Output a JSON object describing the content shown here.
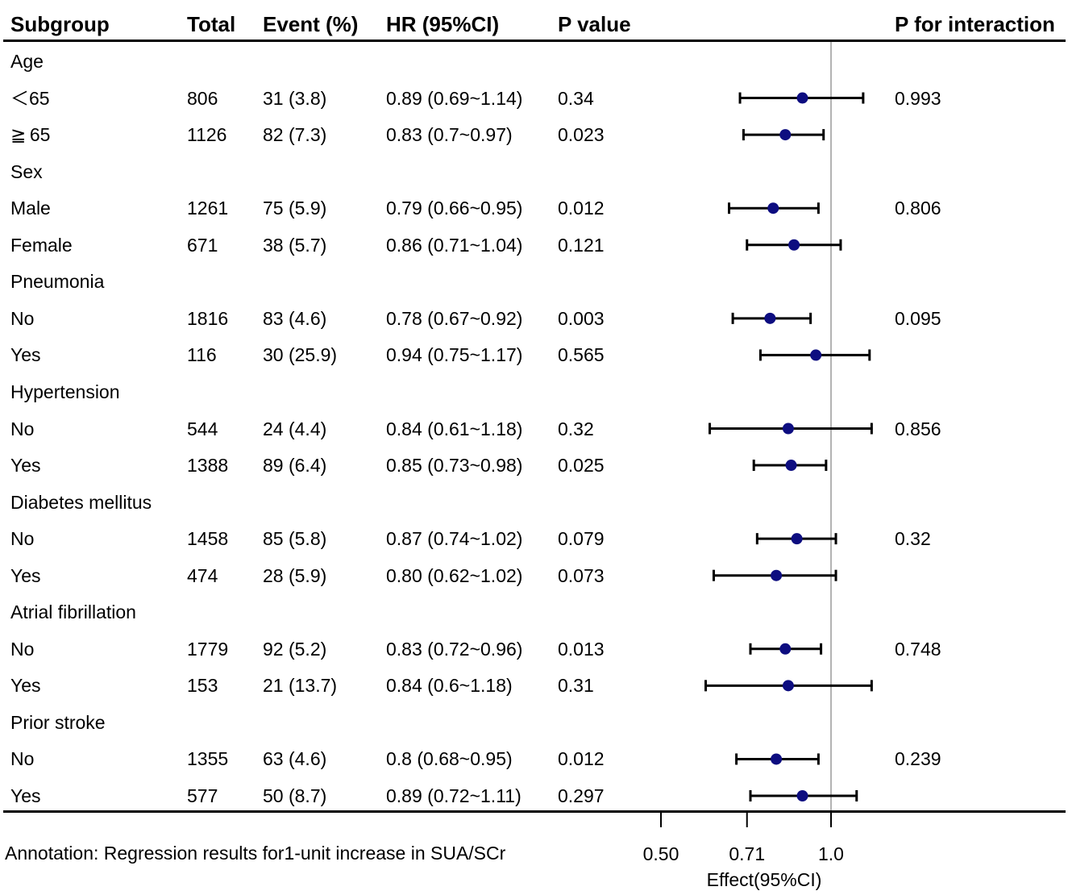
{
  "chart_data": {
    "type": "forest",
    "headers": {
      "subgroup": "Subgroup",
      "total": "Total",
      "event": "Event (%)",
      "hr": "HR (95%CI)",
      "p": "P value",
      "p_interaction": "P for interaction"
    },
    "rows": [
      {
        "kind": "group",
        "label": "Age"
      },
      {
        "kind": "item",
        "label": "＜65",
        "total": "806",
        "event": "31 (3.8)",
        "hr_text": "0.89 (0.69~1.14)",
        "p": "0.34",
        "p_interaction": "0.993",
        "hr": 0.89,
        "lower": 0.69,
        "upper": 1.14
      },
      {
        "kind": "item",
        "label": "≧ 65",
        "total": "1126",
        "event": "82 (7.3)",
        "hr_text": "0.83 (0.7~0.97)",
        "p": "0.023",
        "p_interaction": "",
        "hr": 0.83,
        "lower": 0.7,
        "upper": 0.97
      },
      {
        "kind": "group",
        "label": "Sex"
      },
      {
        "kind": "item",
        "label": "Male",
        "total": "1261",
        "event": "75 (5.9)",
        "hr_text": "0.79 (0.66~0.95)",
        "p": "0.012",
        "p_interaction": "0.806",
        "hr": 0.79,
        "lower": 0.66,
        "upper": 0.95
      },
      {
        "kind": "item",
        "label": "Female",
        "total": "671",
        "event": "38 (5.7)",
        "hr_text": "0.86 (0.71~1.04)",
        "p": "0.121",
        "p_interaction": "",
        "hr": 0.86,
        "lower": 0.71,
        "upper": 1.04
      },
      {
        "kind": "group",
        "label": "Pneumonia"
      },
      {
        "kind": "item",
        "label": "No",
        "total": "1816",
        "event": "83 (4.6)",
        "hr_text": "0.78 (0.67~0.92)",
        "p": "0.003",
        "p_interaction": "0.095",
        "hr": 0.78,
        "lower": 0.67,
        "upper": 0.92
      },
      {
        "kind": "item",
        "label": "Yes",
        "total": "116",
        "event": "30 (25.9)",
        "hr_text": "0.94 (0.75~1.17)",
        "p": "0.565",
        "p_interaction": "",
        "hr": 0.94,
        "lower": 0.75,
        "upper": 1.17
      },
      {
        "kind": "group",
        "label": "Hypertension"
      },
      {
        "kind": "item",
        "label": "No",
        "total": "544",
        "event": "24 (4.4)",
        "hr_text": "0.84 (0.61~1.18)",
        "p": "0.32",
        "p_interaction": "0.856",
        "hr": 0.84,
        "lower": 0.61,
        "upper": 1.18
      },
      {
        "kind": "item",
        "label": "Yes",
        "total": "1388",
        "event": "89 (6.4)",
        "hr_text": "0.85 (0.73~0.98)",
        "p": "0.025",
        "p_interaction": "",
        "hr": 0.85,
        "lower": 0.73,
        "upper": 0.98
      },
      {
        "kind": "group",
        "label": "Diabetes mellitus"
      },
      {
        "kind": "item",
        "label": "No",
        "total": "1458",
        "event": "85 (5.8)",
        "hr_text": "0.87 (0.74~1.02)",
        "p": "0.079",
        "p_interaction": "0.32",
        "hr": 0.87,
        "lower": 0.74,
        "upper": 1.02
      },
      {
        "kind": "item",
        "label": "Yes",
        "total": "474",
        "event": "28 (5.9)",
        "hr_text": "0.80 (0.62~1.02)",
        "p": "0.073",
        "p_interaction": "",
        "hr": 0.8,
        "lower": 0.62,
        "upper": 1.02
      },
      {
        "kind": "group",
        "label": "Atrial fibrillation"
      },
      {
        "kind": "item",
        "label": "No",
        "total": "1779",
        "event": "92 (5.2)",
        "hr_text": "0.83 (0.72~0.96)",
        "p": "0.013",
        "p_interaction": "0.748",
        "hr": 0.83,
        "lower": 0.72,
        "upper": 0.96
      },
      {
        "kind": "item",
        "label": "Yes",
        "total": "153",
        "event": "21 (13.7)",
        "hr_text": "0.84 (0.6~1.18)",
        "p": "0.31",
        "p_interaction": "",
        "hr": 0.84,
        "lower": 0.6,
        "upper": 1.18
      },
      {
        "kind": "group",
        "label": "Prior stroke"
      },
      {
        "kind": "item",
        "label": "No",
        "total": "1355",
        "event": "63 (4.6)",
        "hr_text": "0.8 (0.68~0.95)",
        "p": "0.012",
        "p_interaction": "0.239",
        "hr": 0.8,
        "lower": 0.68,
        "upper": 0.95
      },
      {
        "kind": "item",
        "label": "Yes",
        "total": "577",
        "event": "50 (8.7)",
        "hr_text": "0.89 (0.72~1.11)",
        "p": "0.297",
        "p_interaction": "",
        "hr": 0.89,
        "lower": 0.72,
        "upper": 1.11
      }
    ],
    "x_axis": {
      "scale": "log2",
      "range": [
        0.5,
        1.0
      ],
      "ticks": [
        0.5,
        0.71,
        1.0
      ],
      "tick_labels": [
        "0.50",
        "0.71",
        "1.0"
      ],
      "reference_line": 1.0,
      "label": "Effect(95%CI)"
    },
    "annotation": "Annotation: Regression results for1-unit increase in SUA/SCr",
    "colors": {
      "point": "#0d0d80",
      "ci_line": "#000000",
      "reference_line": "#b3b3b3"
    }
  }
}
